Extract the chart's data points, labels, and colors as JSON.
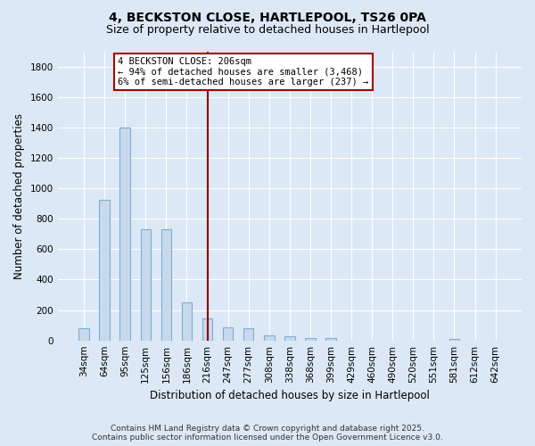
{
  "title_line1": "4, BECKSTON CLOSE, HARTLEPOOL, TS26 0PA",
  "title_line2": "Size of property relative to detached houses in Hartlepool",
  "xlabel": "Distribution of detached houses by size in Hartlepool",
  "ylabel": "Number of detached properties",
  "bar_color": "#c8d9ee",
  "bar_edge_color": "#7bafd4",
  "background_color": "#dce8f5",
  "plot_bg_color": "#dce8f5",
  "grid_color": "#ffffff",
  "categories": [
    "34sqm",
    "64sqm",
    "95sqm",
    "125sqm",
    "156sqm",
    "186sqm",
    "216sqm",
    "247sqm",
    "277sqm",
    "308sqm",
    "338sqm",
    "368sqm",
    "399sqm",
    "429sqm",
    "460sqm",
    "490sqm",
    "520sqm",
    "551sqm",
    "581sqm",
    "612sqm",
    "642sqm"
  ],
  "values": [
    80,
    925,
    1400,
    730,
    730,
    248,
    145,
    85,
    80,
    35,
    30,
    15,
    15,
    0,
    0,
    0,
    0,
    0,
    12,
    0,
    0
  ],
  "ylim": [
    0,
    1900
  ],
  "yticks": [
    0,
    200,
    400,
    600,
    800,
    1000,
    1200,
    1400,
    1600,
    1800
  ],
  "property_line_x": 6,
  "annotation_text": "4 BECKSTON CLOSE: 206sqm\n← 94% of detached houses are smaller (3,468)\n6% of semi-detached houses are larger (237) →",
  "annotation_box_color": "#ffffff",
  "annotation_box_edge": "#aa0000",
  "vline_color": "#880000",
  "footer_line1": "Contains HM Land Registry data © Crown copyright and database right 2025.",
  "footer_line2": "Contains public sector information licensed under the Open Government Licence v3.0.",
  "title_fontsize": 10,
  "subtitle_fontsize": 9,
  "axis_label_fontsize": 8.5,
  "tick_fontsize": 7.5,
  "annotation_fontsize": 7.5,
  "footer_fontsize": 6.5
}
